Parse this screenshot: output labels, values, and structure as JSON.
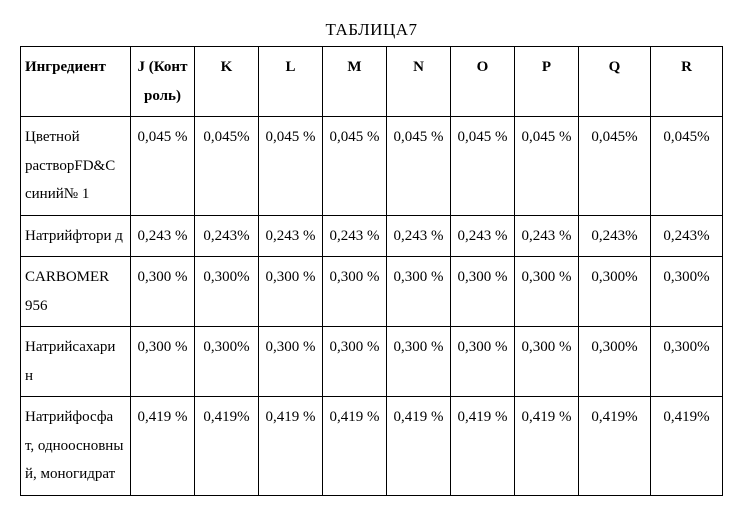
{
  "caption": "ТАБЛИЦА7",
  "columns": {
    "c0": "Ингредиент",
    "c1": "J (Конт роль)",
    "c2": "K",
    "c3": "L",
    "c4": "M",
    "c5": "N",
    "c6": "O",
    "c7": "P",
    "c8": "Q",
    "c9": "R"
  },
  "rows": [
    {
      "label": "Цветной растворFD&C синий№ 1",
      "v": [
        "0,045 %",
        "0,045%",
        "0,045 %",
        "0,045 %",
        "0,045 %",
        "0,045 %",
        "0,045 %",
        "0,045%",
        "0,045%"
      ]
    },
    {
      "label": "Натрийфтори д",
      "v": [
        "0,243 %",
        "0,243%",
        "0,243 %",
        "0,243 %",
        "0,243 %",
        "0,243 %",
        "0,243 %",
        "0,243%",
        "0,243%"
      ]
    },
    {
      "label": "CARBOMER 956",
      "v": [
        "0,300 %",
        "0,300%",
        "0,300 %",
        "0,300 %",
        "0,300 %",
        "0,300 %",
        "0,300 %",
        "0,300%",
        "0,300%"
      ]
    },
    {
      "label": "Натрийсахари н",
      "v": [
        "0,300 %",
        "0,300%",
        "0,300 %",
        "0,300 %",
        "0,300 %",
        "0,300 %",
        "0,300 %",
        "0,300%",
        "0,300%"
      ]
    },
    {
      "label": "Натрийфосфа т, одноосновны й, моногидрат",
      "v": [
        "0,419 %",
        "0,419%",
        "0,419 %",
        "0,419 %",
        "0,419 %",
        "0,419 %",
        "0,419 %",
        "0,419%",
        "0,419%"
      ]
    }
  ]
}
